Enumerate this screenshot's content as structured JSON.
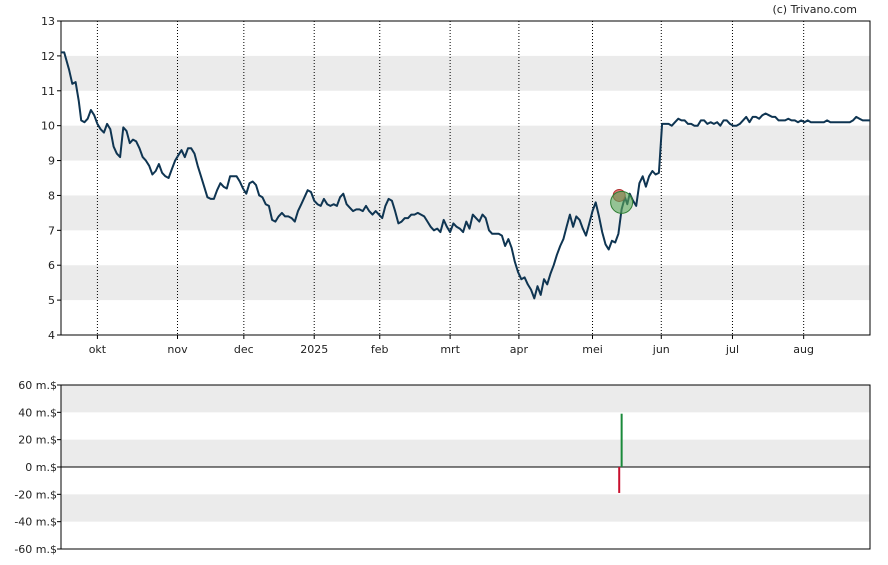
{
  "credit": "(c) Trivano.com",
  "colors": {
    "price_line": "#0f3552",
    "band": "#ebebeb",
    "axis": "#000000",
    "grid": "#000000",
    "buy_bar": "#1a8a3a",
    "sell_bar": "#c8102e",
    "buy_marker": "#5aa85a",
    "sell_marker": "#e06060"
  },
  "chart_data": [
    {
      "type": "line",
      "title": "",
      "ylim": [
        4,
        13
      ],
      "yticks": [
        "4",
        "5",
        "6",
        "7",
        "8",
        "9",
        "10",
        "11",
        "12",
        "13"
      ],
      "x_domain": [
        0,
        1000
      ],
      "months": [
        {
          "label": "okt",
          "x": 45
        },
        {
          "label": "nov",
          "x": 144
        },
        {
          "label": "dec",
          "x": 226
        },
        {
          "label": "2025",
          "x": 313
        },
        {
          "label": "feb",
          "x": 394
        },
        {
          "label": "mrt",
          "x": 481
        },
        {
          "label": "apr",
          "x": 566
        },
        {
          "label": "mei",
          "x": 657
        },
        {
          "label": "jun",
          "x": 742
        },
        {
          "label": "jul",
          "x": 830
        },
        {
          "label": "aug",
          "x": 918
        }
      ],
      "grid": "vertical dotted at month starts",
      "series": [
        {
          "points": [
            [
              0,
              12.1
            ],
            [
              4,
              12.1
            ],
            [
              10,
              11.6
            ],
            [
              14,
              11.2
            ],
            [
              18,
              11.25
            ],
            [
              22,
              10.7
            ],
            [
              25,
              10.15
            ],
            [
              29,
              10.1
            ],
            [
              33,
              10.2
            ],
            [
              37,
              10.45
            ],
            [
              41,
              10.3
            ],
            [
              45,
              10.05
            ],
            [
              49,
              9.9
            ],
            [
              53,
              9.8
            ],
            [
              57,
              10.05
            ],
            [
              61,
              9.9
            ],
            [
              65,
              9.4
            ],
            [
              69,
              9.2
            ],
            [
              73,
              9.1
            ],
            [
              77,
              9.95
            ],
            [
              81,
              9.85
            ],
            [
              85,
              9.5
            ],
            [
              89,
              9.6
            ],
            [
              93,
              9.55
            ],
            [
              97,
              9.35
            ],
            [
              101,
              9.1
            ],
            [
              105,
              9.0
            ],
            [
              109,
              8.85
            ],
            [
              113,
              8.6
            ],
            [
              117,
              8.7
            ],
            [
              121,
              8.9
            ],
            [
              125,
              8.65
            ],
            [
              129,
              8.55
            ],
            [
              133,
              8.5
            ],
            [
              137,
              8.75
            ],
            [
              141,
              9.0
            ],
            [
              145,
              9.15
            ],
            [
              149,
              9.3
            ],
            [
              153,
              9.1
            ],
            [
              157,
              9.35
            ],
            [
              161,
              9.35
            ],
            [
              165,
              9.2
            ],
            [
              169,
              8.85
            ],
            [
              173,
              8.55
            ],
            [
              177,
              8.25
            ],
            [
              181,
              7.95
            ],
            [
              185,
              7.9
            ],
            [
              189,
              7.9
            ],
            [
              193,
              8.15
            ],
            [
              197,
              8.35
            ],
            [
              201,
              8.25
            ],
            [
              205,
              8.2
            ],
            [
              209,
              8.55
            ],
            [
              213,
              8.55
            ],
            [
              217,
              8.55
            ],
            [
              221,
              8.4
            ],
            [
              225,
              8.2
            ],
            [
              229,
              8.05
            ],
            [
              233,
              8.35
            ],
            [
              237,
              8.4
            ],
            [
              241,
              8.3
            ],
            [
              245,
              8.0
            ],
            [
              249,
              7.95
            ],
            [
              253,
              7.75
            ],
            [
              257,
              7.7
            ],
            [
              261,
              7.3
            ],
            [
              265,
              7.25
            ],
            [
              269,
              7.4
            ],
            [
              273,
              7.5
            ],
            [
              277,
              7.4
            ],
            [
              281,
              7.4
            ],
            [
              285,
              7.35
            ],
            [
              289,
              7.25
            ],
            [
              293,
              7.55
            ],
            [
              297,
              7.75
            ],
            [
              301,
              7.95
            ],
            [
              305,
              8.15
            ],
            [
              309,
              8.1
            ],
            [
              313,
              7.85
            ],
            [
              317,
              7.75
            ],
            [
              321,
              7.7
            ],
            [
              325,
              7.9
            ],
            [
              329,
              7.75
            ],
            [
              333,
              7.7
            ],
            [
              337,
              7.75
            ],
            [
              341,
              7.7
            ],
            [
              345,
              7.95
            ],
            [
              349,
              8.05
            ],
            [
              353,
              7.75
            ],
            [
              357,
              7.65
            ],
            [
              361,
              7.55
            ],
            [
              365,
              7.6
            ],
            [
              369,
              7.6
            ],
            [
              373,
              7.55
            ],
            [
              377,
              7.7
            ],
            [
              381,
              7.55
            ],
            [
              385,
              7.45
            ],
            [
              389,
              7.55
            ],
            [
              393,
              7.45
            ],
            [
              397,
              7.35
            ],
            [
              401,
              7.7
            ],
            [
              405,
              7.9
            ],
            [
              409,
              7.85
            ],
            [
              413,
              7.55
            ],
            [
              417,
              7.2
            ],
            [
              421,
              7.25
            ],
            [
              425,
              7.35
            ],
            [
              429,
              7.35
            ],
            [
              433,
              7.45
            ],
            [
              437,
              7.45
            ],
            [
              441,
              7.5
            ],
            [
              445,
              7.45
            ],
            [
              449,
              7.4
            ],
            [
              453,
              7.25
            ],
            [
              457,
              7.1
            ],
            [
              461,
              7.0
            ],
            [
              465,
              7.05
            ],
            [
              469,
              6.95
            ],
            [
              473,
              7.3
            ],
            [
              477,
              7.1
            ],
            [
              481,
              6.95
            ],
            [
              485,
              7.2
            ],
            [
              489,
              7.1
            ],
            [
              493,
              7.05
            ],
            [
              497,
              6.95
            ],
            [
              501,
              7.25
            ],
            [
              505,
              7.05
            ],
            [
              509,
              7.45
            ],
            [
              513,
              7.35
            ],
            [
              517,
              7.25
            ],
            [
              521,
              7.45
            ],
            [
              525,
              7.35
            ],
            [
              529,
              7.0
            ],
            [
              533,
              6.9
            ],
            [
              537,
              6.9
            ],
            [
              541,
              6.9
            ],
            [
              545,
              6.85
            ],
            [
              549,
              6.55
            ],
            [
              553,
              6.75
            ],
            [
              557,
              6.5
            ],
            [
              561,
              6.1
            ],
            [
              565,
              5.8
            ],
            [
              569,
              5.6
            ],
            [
              573,
              5.65
            ],
            [
              577,
              5.45
            ],
            [
              581,
              5.3
            ],
            [
              585,
              5.05
            ],
            [
              589,
              5.4
            ],
            [
              593,
              5.15
            ],
            [
              597,
              5.6
            ],
            [
              601,
              5.45
            ],
            [
              605,
              5.75
            ],
            [
              609,
              6.0
            ],
            [
              613,
              6.3
            ],
            [
              617,
              6.55
            ],
            [
              621,
              6.75
            ],
            [
              625,
              7.1
            ],
            [
              629,
              7.45
            ],
            [
              633,
              7.1
            ],
            [
              637,
              7.4
            ],
            [
              641,
              7.3
            ],
            [
              645,
              7.05
            ],
            [
              649,
              6.85
            ],
            [
              653,
              7.2
            ],
            [
              657,
              7.55
            ],
            [
              661,
              7.8
            ],
            [
              665,
              7.4
            ],
            [
              669,
              6.95
            ],
            [
              673,
              6.6
            ],
            [
              677,
              6.45
            ],
            [
              681,
              6.7
            ],
            [
              685,
              6.65
            ],
            [
              689,
              6.9
            ],
            [
              693,
              7.6
            ],
            [
              697,
              7.95
            ],
            [
              700,
              7.75
            ],
            [
              703,
              8.05
            ],
            [
              707,
              7.85
            ],
            [
              711,
              7.7
            ],
            [
              715,
              8.35
            ],
            [
              719,
              8.55
            ],
            [
              723,
              8.25
            ],
            [
              727,
              8.55
            ],
            [
              731,
              8.7
            ],
            [
              735,
              8.6
            ],
            [
              739,
              8.65
            ],
            [
              743,
              10.05
            ],
            [
              747,
              10.05
            ],
            [
              751,
              10.05
            ],
            [
              755,
              10.0
            ],
            [
              759,
              10.1
            ],
            [
              763,
              10.2
            ],
            [
              767,
              10.15
            ],
            [
              771,
              10.15
            ],
            [
              775,
              10.05
            ],
            [
              779,
              10.05
            ],
            [
              783,
              10.0
            ],
            [
              787,
              10.0
            ],
            [
              791,
              10.15
            ],
            [
              795,
              10.15
            ],
            [
              799,
              10.05
            ],
            [
              803,
              10.1
            ],
            [
              807,
              10.05
            ],
            [
              811,
              10.1
            ],
            [
              815,
              10.0
            ],
            [
              819,
              10.15
            ],
            [
              823,
              10.15
            ],
            [
              827,
              10.05
            ],
            [
              831,
              10.0
            ],
            [
              835,
              10.0
            ],
            [
              839,
              10.05
            ],
            [
              843,
              10.15
            ],
            [
              847,
              10.25
            ],
            [
              851,
              10.1
            ],
            [
              855,
              10.25
            ],
            [
              859,
              10.25
            ],
            [
              863,
              10.2
            ],
            [
              867,
              10.3
            ],
            [
              871,
              10.35
            ],
            [
              875,
              10.3
            ],
            [
              879,
              10.25
            ],
            [
              883,
              10.25
            ],
            [
              887,
              10.15
            ],
            [
              891,
              10.15
            ],
            [
              895,
              10.15
            ],
            [
              899,
              10.2
            ],
            [
              903,
              10.15
            ],
            [
              907,
              10.15
            ],
            [
              911,
              10.1
            ],
            [
              915,
              10.15
            ],
            [
              919,
              10.1
            ],
            [
              923,
              10.15
            ],
            [
              927,
              10.1
            ],
            [
              931,
              10.1
            ],
            [
              935,
              10.1
            ],
            [
              939,
              10.1
            ],
            [
              943,
              10.1
            ],
            [
              947,
              10.15
            ],
            [
              951,
              10.1
            ],
            [
              955,
              10.1
            ],
            [
              959,
              10.1
            ],
            [
              963,
              10.1
            ],
            [
              967,
              10.1
            ],
            [
              971,
              10.1
            ],
            [
              975,
              10.1
            ],
            [
              979,
              10.15
            ],
            [
              983,
              10.25
            ],
            [
              987,
              10.2
            ],
            [
              991,
              10.15
            ],
            [
              995,
              10.15
            ],
            [
              1000,
              10.15
            ]
          ]
        }
      ],
      "markers": [
        {
          "kind": "sell",
          "x": 690,
          "y": 8.0
        },
        {
          "kind": "buy",
          "x": 693,
          "y": 7.8
        }
      ]
    },
    {
      "type": "bar",
      "ylim": [
        -60,
        60
      ],
      "yticks": [
        "-60 m.$",
        "-40 m.$",
        "-20 m.$",
        "0 m.$",
        "20 m.$",
        "40 m.$",
        "60 m.$"
      ],
      "x_domain": [
        0,
        1000
      ],
      "bars": [
        {
          "kind": "sell",
          "x": 690,
          "value": -19
        },
        {
          "kind": "buy",
          "x": 693,
          "value": 39
        }
      ]
    }
  ]
}
